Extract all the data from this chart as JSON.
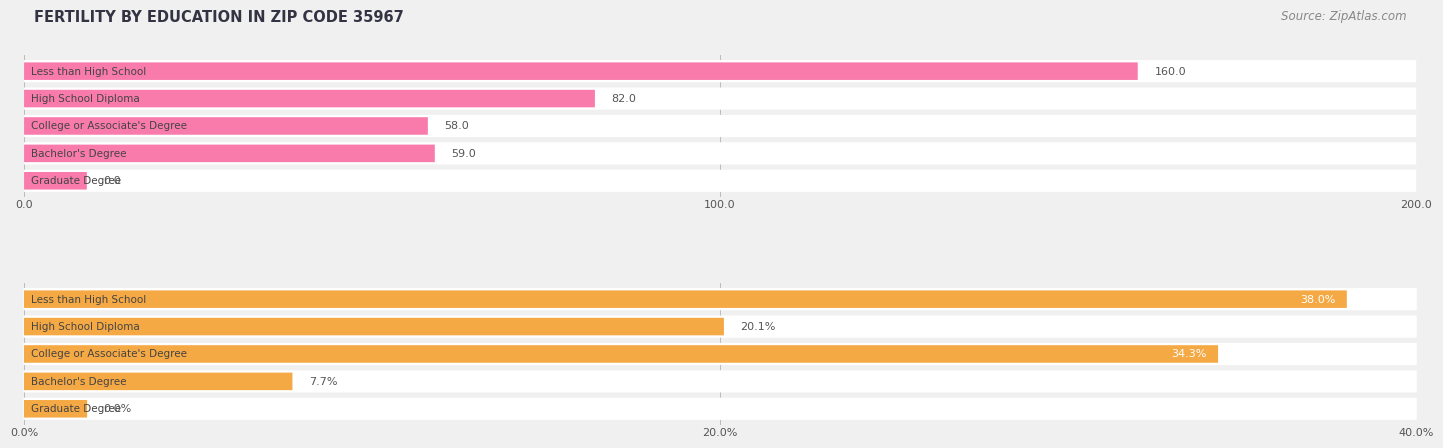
{
  "title": "FERTILITY BY EDUCATION IN ZIP CODE 35967",
  "source": "Source: ZipAtlas.com",
  "top_chart": {
    "categories": [
      "Less than High School",
      "High School Diploma",
      "College or Associate's Degree",
      "Bachelor's Degree",
      "Graduate Degree"
    ],
    "values": [
      160.0,
      82.0,
      58.0,
      59.0,
      0.0
    ],
    "labels": [
      "160.0",
      "82.0",
      "58.0",
      "59.0",
      "0.0"
    ],
    "bar_color_main": "#F87BAC",
    "bar_color_light": "#FBBBCD",
    "xlim": [
      0,
      200
    ],
    "xticks": [
      0.0,
      100.0,
      200.0
    ],
    "xticklabels": [
      "0.0",
      "100.0",
      "200.0"
    ]
  },
  "bottom_chart": {
    "categories": [
      "Less than High School",
      "High School Diploma",
      "College or Associate's Degree",
      "Bachelor's Degree",
      "Graduate Degree"
    ],
    "values": [
      38.0,
      20.1,
      34.3,
      7.7,
      0.0
    ],
    "labels": [
      "38.0%",
      "20.1%",
      "34.3%",
      "7.7%",
      "0.0%"
    ],
    "bar_color_main": "#F5A945",
    "bar_color_light": "#FBCF8E",
    "xlim": [
      0,
      40
    ],
    "xticks": [
      0.0,
      20.0,
      40.0
    ],
    "xticklabels": [
      "0.0%",
      "20.0%",
      "40.0%"
    ]
  },
  "title_fontsize": 10.5,
  "source_fontsize": 8.5,
  "label_fontsize": 8,
  "category_fontsize": 7.5,
  "tick_fontsize": 8,
  "bg_color": "#f0f0f0",
  "bar_bg_color": "#ffffff",
  "title_color": "#333344",
  "source_color": "#888888",
  "label_inside_color_top": [
    "white",
    "#555555",
    "#555555",
    "#555555",
    "#555555"
  ],
  "label_inside_color_bottom": [
    "white",
    "#555555",
    "white",
    "#555555",
    "#555555"
  ]
}
